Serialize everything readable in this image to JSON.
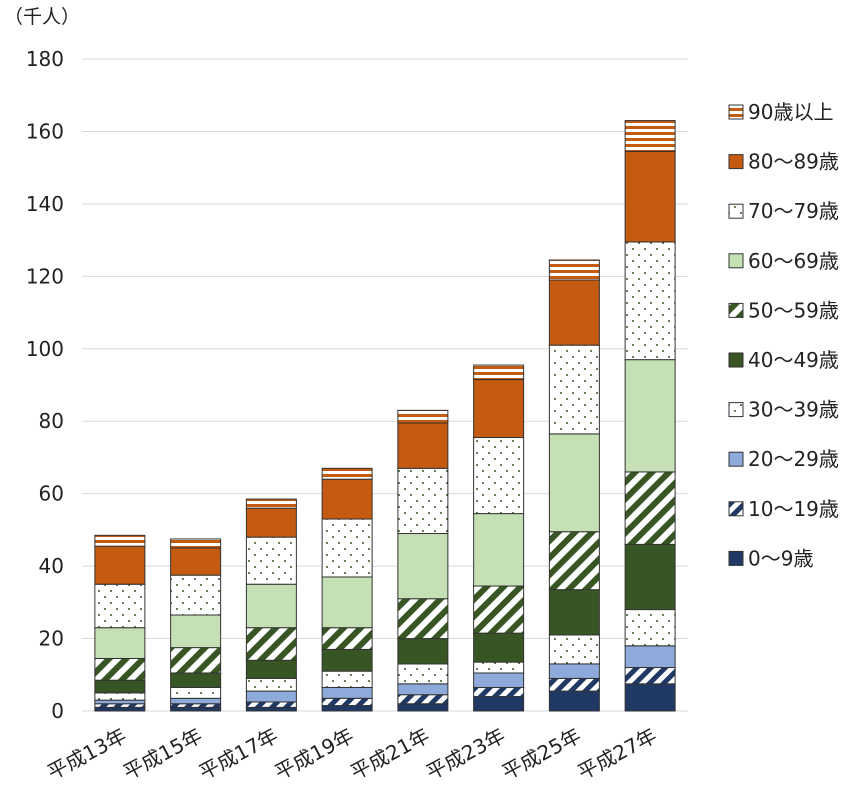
{
  "chart_data": {
    "type": "bar",
    "stacked": true,
    "unit_label": "（千人）",
    "categories": [
      "平成13年",
      "平成15年",
      "平成17年",
      "平成19年",
      "平成21年",
      "平成23年",
      "平成25年",
      "平成27年"
    ],
    "yticks": [
      "0",
      "20",
      "40",
      "60",
      "80",
      "100",
      "120",
      "140",
      "160",
      "180"
    ],
    "ylim": [
      0,
      180
    ],
    "grid": true,
    "legend_position": "right",
    "series": [
      {
        "name": "0～9歳",
        "fill": "#1f3864",
        "pattern": "solid",
        "values": [
          1,
          1,
          1,
          1.5,
          2,
          4,
          5.5,
          7.5
        ]
      },
      {
        "name": "10～19歳",
        "fill": "#1f3864",
        "pattern": "diagonal",
        "values": [
          1,
          1,
          1.5,
          2,
          2.5,
          2.5,
          3.5,
          4.5
        ]
      },
      {
        "name": "20～29歳",
        "fill": "#8eaadb",
        "pattern": "solid",
        "values": [
          1,
          1.5,
          3,
          3,
          3,
          4,
          4,
          6
        ]
      },
      {
        "name": "30～39歳",
        "fill": "#ffffff",
        "pattern": "dots",
        "values": [
          2,
          3,
          3.5,
          4.5,
          5.5,
          3,
          8,
          10
        ]
      },
      {
        "name": "40～49歳",
        "fill": "#375623",
        "pattern": "solid",
        "values": [
          3.5,
          4,
          5,
          6,
          7,
          8,
          12.5,
          18
        ]
      },
      {
        "name": "50～59歳",
        "fill": "#375623",
        "pattern": "diagonal",
        "values": [
          6,
          7,
          9,
          6,
          11,
          13,
          16,
          20
        ]
      },
      {
        "name": "60～69歳",
        "fill": "#c5e0b4",
        "pattern": "solid",
        "values": [
          8.5,
          9,
          12,
          14,
          18,
          20,
          27,
          31
        ]
      },
      {
        "name": "70～79歳",
        "fill": "#ffffff",
        "pattern": "dots",
        "values": [
          12,
          11,
          13,
          16,
          18,
          21,
          24.5,
          32.5
        ]
      },
      {
        "name": "80～89歳",
        "fill": "#c55a11",
        "pattern": "solid",
        "values": [
          10.5,
          7.5,
          8,
          11,
          12.5,
          16,
          18,
          25
        ]
      },
      {
        "name": "90歳以上",
        "fill": "#c55a11",
        "pattern": "hstripe",
        "values": [
          3,
          2.5,
          2.5,
          3,
          3.5,
          4,
          5.5,
          8.5
        ]
      }
    ]
  }
}
